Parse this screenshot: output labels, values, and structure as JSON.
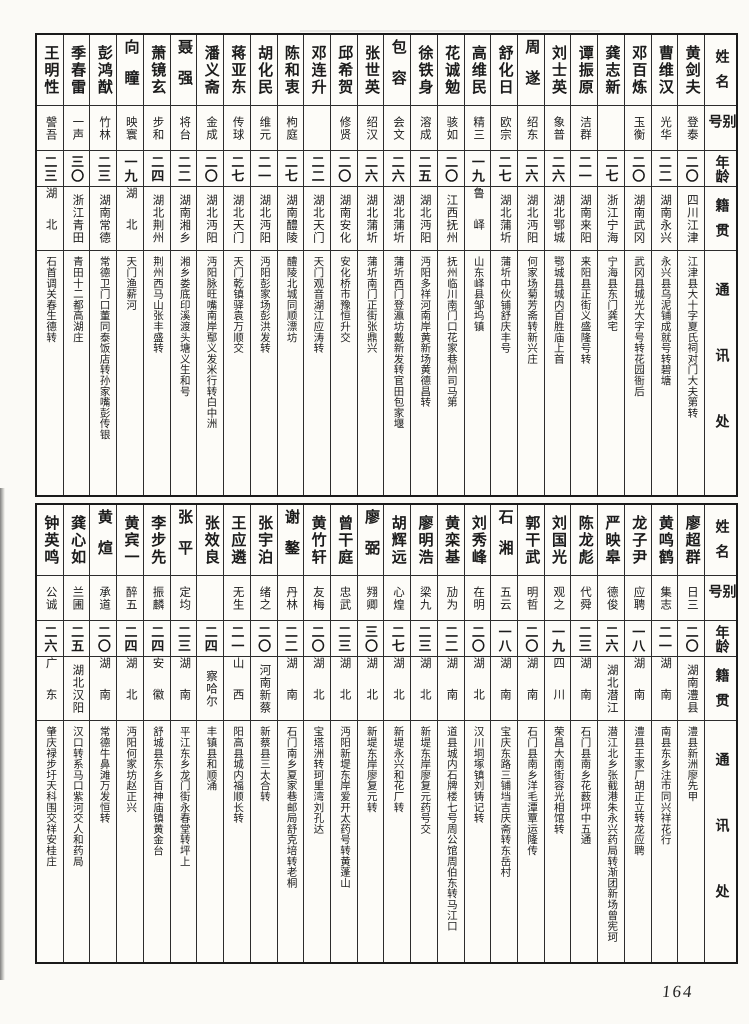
{
  "page": {
    "number": "164"
  },
  "column_headers": {
    "name": "姓名",
    "alias": "别号",
    "age": "年龄",
    "native": "籍贯",
    "contact": "通讯处"
  },
  "tables": [
    {
      "id": "top",
      "people": [
        {
          "name": "黄剑夫",
          "alias": "登泰",
          "age": "二〇",
          "native": "四川江津",
          "contact": "江津县大十字夏氏祠对门大夫第转"
        },
        {
          "name": "曹维汉",
          "alias": "光华",
          "age": "二二",
          "native": "湖南永兴",
          "contact": "永兴县乌泥铺成就号转碧塘"
        },
        {
          "name": "邓百炼",
          "alias": "玉衡",
          "age": "二〇",
          "native": "湖南武冈",
          "contact": "武冈县城光大字号转花园衙后"
        },
        {
          "name": "龚志新",
          "alias": "",
          "age": "二七",
          "native": "浙江宁海",
          "contact": "宁海县东门龚宅"
        },
        {
          "name": "谭振原",
          "alias": "洁群",
          "age": "二一",
          "native": "湖南来阳",
          "contact": "来阳县正街义盛隆号转"
        },
        {
          "name": "刘士英",
          "alias": "象普",
          "age": "二六",
          "native": "湖北鄂城",
          "contact": "鄂城县城内百胜庙上首"
        },
        {
          "name": "周遂",
          "alias": "绍东",
          "age": "二六",
          "native": "湖北沔阳",
          "contact": "何家场菊芳斋转新兴庄"
        },
        {
          "name": "舒化日",
          "alias": "欧宗",
          "age": "二七",
          "native": "湖北蒲圻",
          "contact": "蒲圻中伙铺舒庆丰号"
        },
        {
          "name": "高维民",
          "alias": "精三",
          "age": "一九",
          "native": "鲁峄",
          "contact": "山东峄县邹坞镇"
        },
        {
          "name": "花诚勉",
          "alias": "骇如",
          "age": "二〇",
          "native": "江西抚州",
          "contact": "抚州临川南门口花家巷州司马第"
        },
        {
          "name": "徐铁身",
          "alias": "溶成",
          "age": "二五",
          "native": "湖北沔阳",
          "contact": "沔阳多祥河南岸黄新场黄德昌转"
        },
        {
          "name": "包容",
          "alias": "会文",
          "age": "二六",
          "native": "湖北蒲圻",
          "contact": "蒲圻西门登瀛坊戴新发转官田包家堰"
        },
        {
          "name": "张世英",
          "alias": "绍汉",
          "age": "二六",
          "native": "湖北蒲圻",
          "contact": "蒲圻南门正街张鼎兴"
        },
        {
          "name": "邱希贺",
          "alias": "修贤",
          "age": "二〇",
          "native": "湖南安化",
          "contact": "安化桥市豫恒升交"
        },
        {
          "name": "邓连升",
          "alias": "",
          "age": "二二",
          "native": "湖北天门",
          "contact": "天门观音湖江应涛转"
        },
        {
          "name": "陈和衷",
          "alias": "枸庭",
          "age": "二七",
          "native": "湖南醴陵",
          "contact": "醴陵北城同顺漂坊"
        },
        {
          "name": "胡化民",
          "alias": "维元",
          "age": "二一",
          "native": "湖北沔阳",
          "contact": "沔阳彭家场彭洪发转"
        },
        {
          "name": "蒋亚东",
          "alias": "传球",
          "age": "二七",
          "native": "湖北天门",
          "contact": "天门乾镇驿袁万顺交"
        },
        {
          "name": "潘义斋",
          "alias": "金成",
          "age": "二〇",
          "native": "湖北沔阳",
          "contact": "沔阳脉旺嘴南岸鄢义发米行转白中洲"
        },
        {
          "name": "聂强",
          "alias": "将台",
          "age": "二二",
          "native": "湖南湘乡",
          "contact": "湘乡娄底印溪渡头塘义生和号"
        },
        {
          "name": "萧镜玄",
          "alias": "步和",
          "age": "二四",
          "native": "湖北荆州",
          "contact": "荆州西马山张丰盛转"
        },
        {
          "name": "向瞳",
          "alias": "映寰",
          "age": "一九",
          "native": "湖北",
          "contact": "天门渔薪河"
        },
        {
          "name": "彭鸿猷",
          "alias": "竹林",
          "age": "二三",
          "native": "湖南常德",
          "contact": "常德卫门口董同泰饭店转孙家嘴彭传银"
        },
        {
          "name": "季春雷",
          "alias": "一声",
          "age": "三〇",
          "native": "浙江青田",
          "contact": "青田十二都高湖庄"
        },
        {
          "name": "王明性",
          "alias": "謦吾",
          "age": "二三",
          "native": "湖北",
          "contact": "石首调关春生德转"
        }
      ]
    },
    {
      "id": "bottom",
      "people": [
        {
          "name": "廖超群",
          "alias": "日三",
          "age": "二〇",
          "native": "湖南澧县",
          "contact": "澧县新洲廖先甲"
        },
        {
          "name": "黄鸣鹤",
          "alias": "集志",
          "age": "二一",
          "native": "湖南",
          "contact": "南县东乡注市同兴祥花行"
        },
        {
          "name": "龙子尹",
          "alias": "应聘",
          "age": "一八",
          "native": "湖南",
          "contact": "澧县王家厂胡正立转龙应聘"
        },
        {
          "name": "严映皋",
          "alias": "德俊",
          "age": "二六",
          "native": "湖北潜江",
          "contact": "潜江北乡张截港朱永兴药局转渐团新场曾宪珂"
        },
        {
          "name": "陈龙彪",
          "alias": "代舜",
          "age": "二三",
          "native": "湖南",
          "contact": "石门县南乡花薮坪中五通"
        },
        {
          "name": "刘国光",
          "alias": "观之",
          "age": "一九",
          "native": "四川",
          "contact": "荣昌大南街容光相馆转"
        },
        {
          "name": "郭干武",
          "alias": "明哲",
          "age": "二〇",
          "native": "湖南",
          "contact": "石门县南乡洋毛潭覃运隆传"
        },
        {
          "name": "石湘",
          "alias": "五云",
          "age": "一八",
          "native": "湖南",
          "contact": "宝庆东路三铺垱吉庆斋转东岳村"
        },
        {
          "name": "刘秀峰",
          "alias": "在明",
          "age": "二〇",
          "native": "湖北",
          "contact": "汉川垌塚镇刘铸记转"
        },
        {
          "name": "黄栾基",
          "alias": "劢为",
          "age": "二二",
          "native": "湖南",
          "contact": "道县城内石牌楼七号周公馆周伯东转马江口"
        },
        {
          "name": "廖明浩",
          "alias": "梁九",
          "age": "二三",
          "native": "湖北",
          "contact": "新堤东岸廖复元药号交"
        },
        {
          "name": "胡辉远",
          "alias": "心煌",
          "age": "二七",
          "native": "湖北",
          "contact": "新堤永兴和花厂转"
        },
        {
          "name": "廖弼",
          "alias": "翙卿",
          "age": "三〇",
          "native": "湖北",
          "contact": "新堤东岸廖复元转"
        },
        {
          "name": "曾干庭",
          "alias": "忠武",
          "age": "二三",
          "native": "湖北",
          "contact": "沔阳新堤东岸爱开太药号转黄蓬山"
        },
        {
          "name": "黄竹轩",
          "alias": "友梅",
          "age": "二〇",
          "native": "湖北",
          "contact": "宝塔洲转珂里湾刘孔达"
        },
        {
          "name": "谢鏊",
          "alias": "丹林",
          "age": "二二",
          "native": "湖南",
          "contact": "石门南乡夏家巷邮局舒克培转老桐"
        },
        {
          "name": "张宇泊",
          "alias": "绪之",
          "age": "二〇",
          "native": "河南新蔡",
          "contact": "新蔡县三太合转"
        },
        {
          "name": "王应遴",
          "alias": "无生",
          "age": "二一",
          "native": "山西",
          "contact": "阳高县城内福顺长转"
        },
        {
          "name": "张效良",
          "alias": "",
          "age": "二四",
          "native": "察哈尔",
          "contact": "丰镇县和顺涌"
        },
        {
          "name": "张平",
          "alias": "定均",
          "age": "二三",
          "native": "湖南",
          "contact": "平江东乡龙门街永春堂转坪上"
        },
        {
          "name": "李步先",
          "alias": "振麟",
          "age": "二四",
          "native": "安徽",
          "contact": "舒城县东乡百神庙镇黄金台"
        },
        {
          "name": "黄宾一",
          "alias": "醉五",
          "age": "二四",
          "native": "湖北",
          "contact": "沔阳何家坊赵正兴"
        },
        {
          "name": "黄煊",
          "alias": "承道",
          "age": "二〇",
          "native": "湖南",
          "contact": "常德牛鼻滩万发恒转"
        },
        {
          "name": "龚心如",
          "alias": "兰圃",
          "age": "二五",
          "native": "湖北汉阳",
          "contact": "汉口转系马口紫河交人和药局"
        },
        {
          "name": "钟英鸣",
          "alias": "公诚",
          "age": "二六",
          "native": "广东",
          "contact": "肇庆禄步圩天科围交祥安桂庄"
        }
      ]
    }
  ]
}
